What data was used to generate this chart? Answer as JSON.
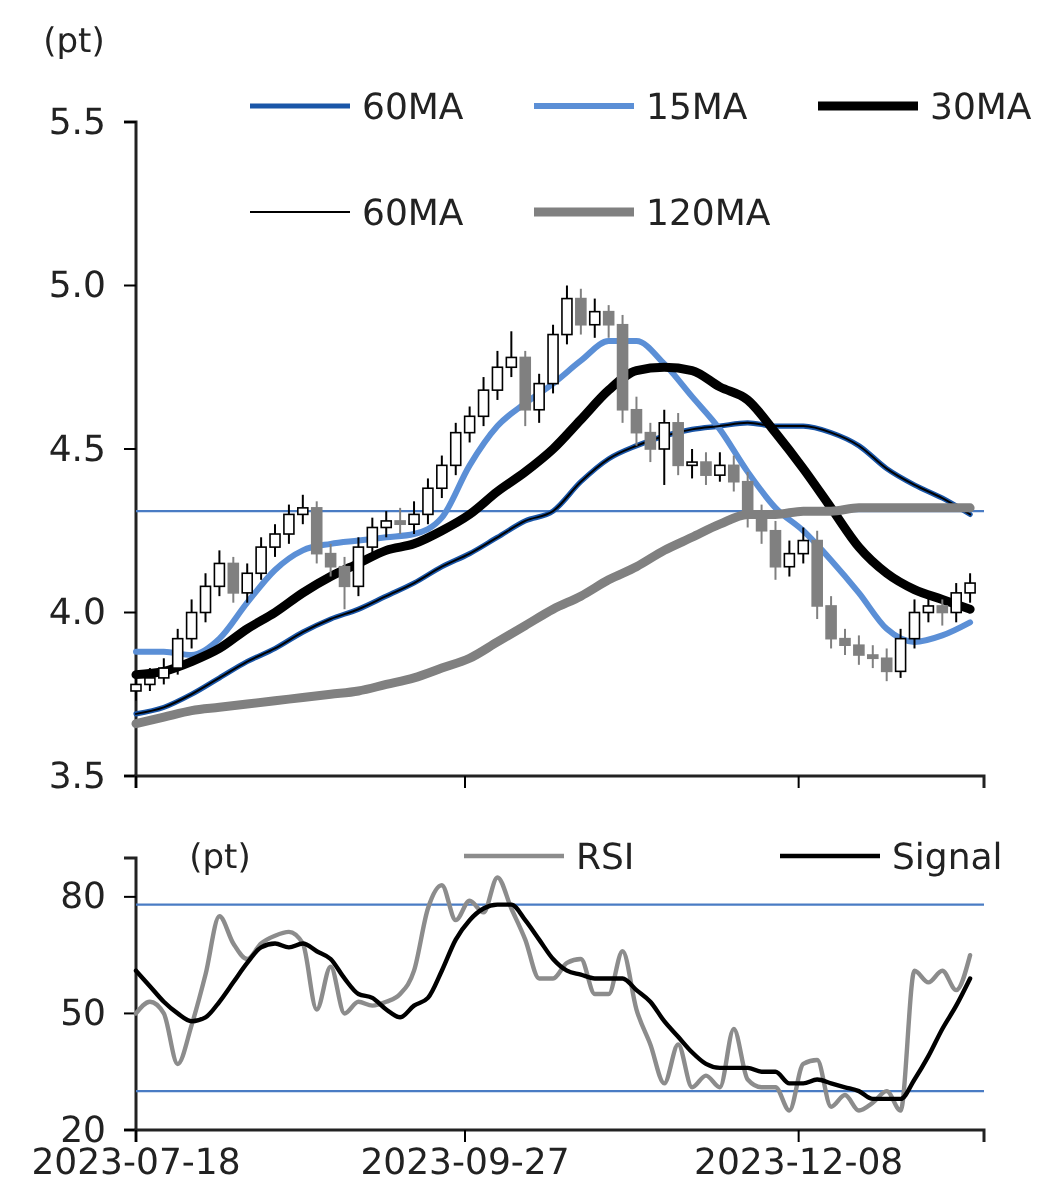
{
  "chart_data": [
    {
      "type": "candlestick",
      "ylabel": "(pt)",
      "legend": "top",
      "tick_labels": "y",
      "xlim": [
        "2023-07-18",
        "2024-01-17"
      ],
      "xticks": [
        {
          "value": "2023-07-18",
          "label": null
        },
        {
          "value": "2023-09-27",
          "label": null
        },
        {
          "value": "2023-12-08",
          "label": null
        }
      ],
      "ylim": [
        3.5,
        5.5
      ],
      "yticks": [
        3.5,
        {
          "value": 4,
          "label": "4.0"
        },
        4.5,
        {
          "value": 5,
          "label": "5.0"
        },
        5.5
      ],
      "x": [
        "2023-07-18",
        "2023-07-21",
        "2023-07-24",
        "2023-07-27",
        "2023-07-30",
        "2023-08-02",
        "2023-08-05",
        "2023-08-08",
        "2023-08-11",
        "2023-08-14",
        "2023-08-17",
        "2023-08-20",
        "2023-08-23",
        "2023-08-26",
        "2023-08-29",
        "2023-09-01",
        "2023-09-04",
        "2023-09-07",
        "2023-09-10",
        "2023-09-13",
        "2023-09-16",
        "2023-09-19",
        "2023-09-22",
        "2023-09-25",
        "2023-09-28",
        "2023-10-01",
        "2023-10-04",
        "2023-10-07",
        "2023-10-10",
        "2023-10-13",
        "2023-10-16",
        "2023-10-19",
        "2023-10-22",
        "2023-10-25",
        "2023-10-28",
        "2023-10-31",
        "2023-11-03",
        "2023-11-06",
        "2023-11-09",
        "2023-11-12",
        "2023-11-15",
        "2023-11-18",
        "2023-11-21",
        "2023-11-24",
        "2023-11-27",
        "2023-11-30",
        "2023-12-03",
        "2023-12-06",
        "2023-12-09",
        "2023-12-12",
        "2023-12-15",
        "2023-12-18",
        "2023-12-21",
        "2023-12-24",
        "2023-12-27",
        "2023-12-30",
        "2024-01-02",
        "2024-01-05",
        "2024-01-08",
        "2024-01-11",
        "2024-01-14"
      ],
      "ohlc": [
        [
          3.76,
          3.81,
          3.73,
          3.78
        ],
        [
          3.78,
          3.83,
          3.76,
          3.8
        ],
        [
          3.8,
          3.86,
          3.78,
          3.83
        ],
        [
          3.83,
          3.95,
          3.81,
          3.92
        ],
        [
          3.92,
          4.04,
          3.89,
          4.0
        ],
        [
          4.0,
          4.12,
          3.97,
          4.08
        ],
        [
          4.08,
          4.19,
          4.05,
          4.15
        ],
        [
          4.15,
          4.17,
          4.03,
          4.06
        ],
        [
          4.06,
          4.15,
          4.03,
          4.12
        ],
        [
          4.12,
          4.23,
          4.1,
          4.2
        ],
        [
          4.2,
          4.27,
          4.17,
          4.24
        ],
        [
          4.24,
          4.33,
          4.21,
          4.3
        ],
        [
          4.3,
          4.36,
          4.27,
          4.32
        ],
        [
          4.32,
          4.34,
          4.15,
          4.18
        ],
        [
          4.18,
          4.21,
          4.11,
          4.14
        ],
        [
          4.14,
          4.17,
          4.01,
          4.08
        ],
        [
          4.08,
          4.23,
          4.05,
          4.2
        ],
        [
          4.2,
          4.29,
          4.17,
          4.26
        ],
        [
          4.26,
          4.31,
          4.23,
          4.28
        ],
        [
          4.28,
          4.32,
          4.24,
          4.27
        ],
        [
          4.27,
          4.34,
          4.24,
          4.3
        ],
        [
          4.3,
          4.41,
          4.27,
          4.38
        ],
        [
          4.38,
          4.48,
          4.35,
          4.45
        ],
        [
          4.45,
          4.58,
          4.42,
          4.55
        ],
        [
          4.55,
          4.63,
          4.52,
          4.6
        ],
        [
          4.6,
          4.72,
          4.57,
          4.68
        ],
        [
          4.68,
          4.8,
          4.65,
          4.75
        ],
        [
          4.75,
          4.86,
          4.72,
          4.78
        ],
        [
          4.78,
          4.8,
          4.57,
          4.62
        ],
        [
          4.62,
          4.73,
          4.58,
          4.7
        ],
        [
          4.7,
          4.88,
          4.67,
          4.85
        ],
        [
          4.85,
          5.0,
          4.82,
          4.96
        ],
        [
          4.96,
          4.99,
          4.85,
          4.88
        ],
        [
          4.88,
          4.96,
          4.84,
          4.92
        ],
        [
          4.92,
          4.94,
          4.84,
          4.88
        ],
        [
          4.88,
          4.91,
          4.58,
          4.62
        ],
        [
          4.62,
          4.66,
          4.51,
          4.55
        ],
        [
          4.55,
          4.58,
          4.46,
          4.5
        ],
        [
          4.5,
          4.62,
          4.39,
          4.58
        ],
        [
          4.58,
          4.61,
          4.42,
          4.45
        ],
        [
          4.45,
          4.5,
          4.41,
          4.46
        ],
        [
          4.46,
          4.49,
          4.39,
          4.42
        ],
        [
          4.42,
          4.49,
          4.4,
          4.45
        ],
        [
          4.45,
          4.48,
          4.37,
          4.4
        ],
        [
          4.4,
          4.43,
          4.26,
          4.3
        ],
        [
          4.3,
          4.33,
          4.21,
          4.25
        ],
        [
          4.25,
          4.28,
          4.1,
          4.14
        ],
        [
          4.14,
          4.22,
          4.11,
          4.18
        ],
        [
          4.18,
          4.26,
          4.15,
          4.22
        ],
        [
          4.22,
          4.25,
          3.98,
          4.02
        ],
        [
          4.02,
          4.05,
          3.89,
          3.92
        ],
        [
          3.92,
          3.95,
          3.87,
          3.9
        ],
        [
          3.9,
          3.93,
          3.84,
          3.87
        ],
        [
          3.87,
          3.9,
          3.83,
          3.86
        ],
        [
          3.86,
          3.89,
          3.79,
          3.82
        ],
        [
          3.82,
          3.95,
          3.8,
          3.92
        ],
        [
          3.92,
          4.04,
          3.89,
          4.0
        ],
        [
          4.0,
          4.06,
          3.97,
          4.02
        ],
        [
          4.02,
          4.04,
          3.96,
          4.0
        ],
        [
          4.0,
          4.09,
          3.97,
          4.06
        ],
        [
          4.06,
          4.12,
          4.03,
          4.09
        ]
      ],
      "colors": [
        "#ffffff",
        "#ffffff",
        "#ffffff",
        "#ffffff",
        "#ffffff",
        "#ffffff",
        "#ffffff",
        "#808080",
        "#ffffff",
        "#ffffff",
        "#ffffff",
        "#ffffff",
        "#ffffff",
        "#808080",
        "#808080",
        "#808080",
        "#ffffff",
        "#ffffff",
        "#ffffff",
        "#808080",
        "#ffffff",
        "#ffffff",
        "#ffffff",
        "#ffffff",
        "#ffffff",
        "#ffffff",
        "#ffffff",
        "#ffffff",
        "#808080",
        "#ffffff",
        "#ffffff",
        "#ffffff",
        "#808080",
        "#ffffff",
        "#808080",
        "#808080",
        "#808080",
        "#808080",
        "#ffffff",
        "#808080",
        "#ffffff",
        "#808080",
        "#ffffff",
        "#808080",
        "#808080",
        "#808080",
        "#808080",
        "#ffffff",
        "#ffffff",
        "#808080",
        "#808080",
        "#808080",
        "#808080",
        "#808080",
        "#808080",
        "#ffffff",
        "#ffffff",
        "#ffffff",
        "#808080",
        "#ffffff",
        "#ffffff"
      ],
      "ref_lines": [
        {
          "axis": "y",
          "value": 4.31,
          "color": "#4a7cc4"
        }
      ],
      "series": [
        {
          "name": "60MA",
          "type": "line",
          "color": "#1a56a8",
          "x": [
            "2023-07-18",
            "2023-07-24",
            "2023-07-30",
            "2023-08-05",
            "2023-08-11",
            "2023-08-17",
            "2023-08-23",
            "2023-08-29",
            "2023-09-04",
            "2023-09-10",
            "2023-09-16",
            "2023-09-22",
            "2023-09-28",
            "2023-10-04",
            "2023-10-10",
            "2023-10-16",
            "2023-10-22",
            "2023-10-28",
            "2023-11-03",
            "2023-11-09",
            "2023-11-15",
            "2023-11-21",
            "2023-11-27",
            "2023-12-03",
            "2023-12-09",
            "2023-12-15",
            "2023-12-21",
            "2023-12-27",
            "2024-01-02",
            "2024-01-08",
            "2024-01-14"
          ],
          "values": [
            3.69,
            3.71,
            3.75,
            3.8,
            3.85,
            3.89,
            3.94,
            3.98,
            4.01,
            4.05,
            4.09,
            4.14,
            4.18,
            4.23,
            4.28,
            4.31,
            4.4,
            4.47,
            4.51,
            4.54,
            4.56,
            4.57,
            4.58,
            4.57,
            4.57,
            4.55,
            4.51,
            4.44,
            4.39,
            4.35,
            4.3
          ]
        },
        {
          "name": "15MA",
          "type": "line",
          "color": "#5b8fd6",
          "x": [
            "2023-07-18",
            "2023-07-24",
            "2023-07-30",
            "2023-08-05",
            "2023-08-11",
            "2023-08-17",
            "2023-08-23",
            "2023-08-29",
            "2023-09-04",
            "2023-09-10",
            "2023-09-16",
            "2023-09-22",
            "2023-09-28",
            "2023-10-04",
            "2023-10-10",
            "2023-10-16",
            "2023-10-22",
            "2023-10-28",
            "2023-11-03",
            "2023-11-09",
            "2023-11-15",
            "2023-11-21",
            "2023-11-27",
            "2023-12-03",
            "2023-12-09",
            "2023-12-15",
            "2023-12-21",
            "2023-12-27",
            "2024-01-02",
            "2024-01-08",
            "2024-01-14"
          ],
          "values": [
            3.88,
            3.88,
            3.87,
            3.92,
            4.03,
            4.13,
            4.19,
            4.21,
            4.22,
            4.23,
            4.24,
            4.29,
            4.45,
            4.57,
            4.64,
            4.7,
            4.77,
            4.83,
            4.83,
            4.76,
            4.66,
            4.56,
            4.43,
            4.32,
            4.25,
            4.16,
            4.06,
            3.95,
            3.91,
            3.93,
            3.97
          ]
        },
        {
          "name": "30MA",
          "type": "line",
          "color": "#000000",
          "x": [
            "2023-07-18",
            "2023-07-24",
            "2023-07-30",
            "2023-08-05",
            "2023-08-11",
            "2023-08-17",
            "2023-08-23",
            "2023-08-29",
            "2023-09-04",
            "2023-09-10",
            "2023-09-16",
            "2023-09-22",
            "2023-09-28",
            "2023-10-04",
            "2023-10-10",
            "2023-10-16",
            "2023-10-22",
            "2023-10-28",
            "2023-11-03",
            "2023-11-09",
            "2023-11-15",
            "2023-11-21",
            "2023-11-27",
            "2023-12-03",
            "2023-12-09",
            "2023-12-15",
            "2023-12-21",
            "2023-12-27",
            "2024-01-02",
            "2024-01-08",
            "2024-01-14"
          ],
          "values": [
            3.81,
            3.82,
            3.85,
            3.89,
            3.95,
            4.0,
            4.06,
            4.11,
            4.15,
            4.19,
            4.21,
            4.25,
            4.3,
            4.37,
            4.43,
            4.5,
            4.59,
            4.68,
            4.74,
            4.75,
            4.74,
            4.69,
            4.65,
            4.55,
            4.44,
            4.32,
            4.2,
            4.12,
            4.07,
            4.04,
            4.01
          ]
        },
        {
          "name": "60MA",
          "type": "line",
          "color": "#000000",
          "x": [
            "2023-07-18",
            "2023-07-24",
            "2023-07-30",
            "2023-08-05",
            "2023-08-11",
            "2023-08-17",
            "2023-08-23",
            "2023-08-29",
            "2023-09-04",
            "2023-09-10",
            "2023-09-16",
            "2023-09-22",
            "2023-09-28",
            "2023-10-04",
            "2023-10-10",
            "2023-10-16",
            "2023-10-22",
            "2023-10-28",
            "2023-11-03",
            "2023-11-09",
            "2023-11-15",
            "2023-11-21",
            "2023-11-27",
            "2023-12-03",
            "2023-12-09",
            "2023-12-15",
            "2023-12-21",
            "2023-12-27",
            "2024-01-02",
            "2024-01-08",
            "2024-01-14"
          ],
          "values": [
            3.69,
            3.71,
            3.75,
            3.8,
            3.85,
            3.89,
            3.94,
            3.98,
            4.01,
            4.05,
            4.09,
            4.14,
            4.18,
            4.23,
            4.28,
            4.31,
            4.4,
            4.47,
            4.51,
            4.54,
            4.56,
            4.57,
            4.58,
            4.57,
            4.57,
            4.55,
            4.51,
            4.44,
            4.39,
            4.35,
            4.3
          ]
        },
        {
          "name": "120MA",
          "type": "line",
          "color": "#808080",
          "x": [
            "2023-07-18",
            "2023-07-24",
            "2023-07-30",
            "2023-08-05",
            "2023-08-11",
            "2023-08-17",
            "2023-08-23",
            "2023-08-29",
            "2023-09-04",
            "2023-09-10",
            "2023-09-16",
            "2023-09-22",
            "2023-09-28",
            "2023-10-04",
            "2023-10-10",
            "2023-10-16",
            "2023-10-22",
            "2023-10-28",
            "2023-11-03",
            "2023-11-09",
            "2023-11-15",
            "2023-11-21",
            "2023-11-27",
            "2023-12-03",
            "2023-12-09",
            "2023-12-15",
            "2023-12-21",
            "2023-12-27",
            "2024-01-02",
            "2024-01-08",
            "2024-01-14"
          ],
          "values": [
            3.66,
            3.68,
            3.7,
            3.71,
            3.72,
            3.73,
            3.74,
            3.75,
            3.76,
            3.78,
            3.8,
            3.83,
            3.86,
            3.91,
            3.96,
            4.01,
            4.05,
            4.1,
            4.14,
            4.19,
            4.23,
            4.27,
            4.3,
            4.3,
            4.31,
            4.31,
            4.32,
            4.32,
            4.32,
            4.32,
            4.32
          ]
        }
      ]
    },
    {
      "type": "line",
      "ylabel": "(pt)",
      "legend": "top",
      "xlim": [
        "2023-07-18",
        "2024-01-17"
      ],
      "xticks": [
        "2023-07-18",
        "2023-09-27",
        "2023-12-08"
      ],
      "ylim": [
        20,
        90
      ],
      "yticks": [
        20,
        50,
        80
      ],
      "x": [
        "2023-07-18",
        "2023-07-21",
        "2023-07-24",
        "2023-07-27",
        "2023-07-30",
        "2023-08-02",
        "2023-08-05",
        "2023-08-08",
        "2023-08-11",
        "2023-08-14",
        "2023-08-17",
        "2023-08-20",
        "2023-08-23",
        "2023-08-26",
        "2023-08-29",
        "2023-09-01",
        "2023-09-04",
        "2023-09-07",
        "2023-09-10",
        "2023-09-13",
        "2023-09-16",
        "2023-09-19",
        "2023-09-22",
        "2023-09-25",
        "2023-09-28",
        "2023-10-01",
        "2023-10-04",
        "2023-10-07",
        "2023-10-10",
        "2023-10-13",
        "2023-10-16",
        "2023-10-19",
        "2023-10-22",
        "2023-10-25",
        "2023-10-28",
        "2023-10-31",
        "2023-11-03",
        "2023-11-06",
        "2023-11-09",
        "2023-11-12",
        "2023-11-15",
        "2023-11-18",
        "2023-11-21",
        "2023-11-24",
        "2023-11-27",
        "2023-11-30",
        "2023-12-03",
        "2023-12-06",
        "2023-12-09",
        "2023-12-12",
        "2023-12-15",
        "2023-12-18",
        "2023-12-21",
        "2023-12-24",
        "2023-12-27",
        "2023-12-30",
        "2024-01-02",
        "2024-01-05",
        "2024-01-08",
        "2024-01-11",
        "2024-01-14"
      ],
      "ref_lines": [
        {
          "axis": "y",
          "value": 78,
          "color": "#4a7cc4"
        },
        {
          "axis": "y",
          "value": 30,
          "color": "#4a7cc4"
        }
      ],
      "series": [
        {
          "name": "RSI",
          "color": "#8c8c8c",
          "values": [
            50,
            53,
            50,
            37,
            47,
            60,
            75,
            68,
            64,
            68,
            70,
            71,
            68,
            51,
            62,
            50,
            53,
            52,
            53,
            55,
            61,
            77,
            83,
            74,
            79,
            76,
            85,
            77,
            69,
            59,
            59,
            63,
            64,
            55,
            55,
            66,
            51,
            42,
            32,
            42,
            31,
            34,
            31,
            46,
            33,
            31,
            31,
            25,
            37,
            38,
            26,
            29,
            25,
            27,
            30,
            25,
            61,
            58,
            61,
            56,
            65
          ]
        },
        {
          "name": "Signal",
          "color": "#000000",
          "values": [
            61,
            57,
            53,
            50,
            48,
            49,
            53,
            58,
            63,
            67,
            68,
            67,
            68,
            66,
            64,
            59,
            55,
            54,
            51,
            49,
            52,
            54,
            61,
            69,
            74,
            77,
            78,
            78,
            74,
            69,
            64,
            61,
            60,
            59,
            59,
            59,
            56,
            53,
            48,
            44,
            40,
            37,
            36,
            36,
            36,
            35,
            35,
            32,
            32,
            33,
            32,
            31,
            30,
            28,
            28,
            28,
            33,
            39,
            46,
            52,
            59
          ]
        }
      ]
    }
  ]
}
